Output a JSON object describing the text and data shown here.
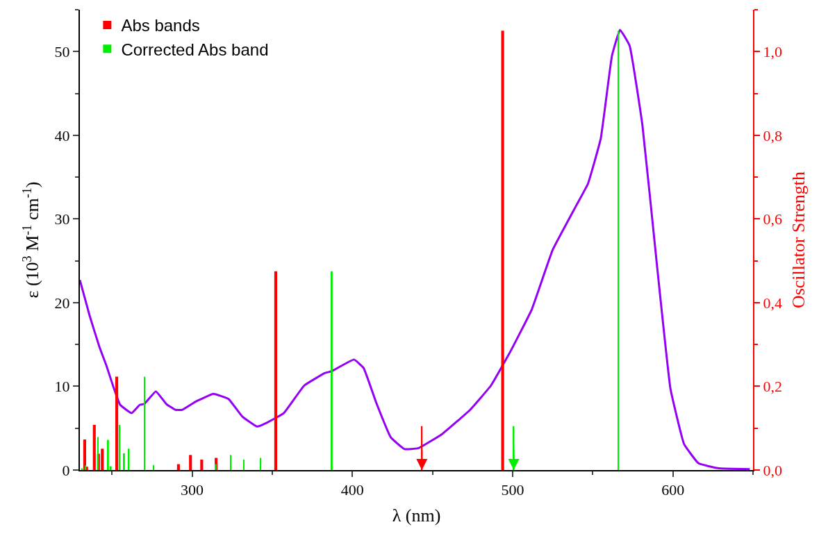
{
  "chart_data": {
    "type": "line",
    "xlabel": "λ (nm)",
    "ylabel": "ε (10$^{3}$ M$^{-1}$ cm$^{-1}$)",
    "y2label": "Oscillator Strength",
    "xlim": [
      230,
      650
    ],
    "xticks": [
      300,
      400,
      500,
      600
    ],
    "ylim": [
      0,
      55
    ],
    "yticks": [
      0,
      10,
      20,
      30,
      40,
      50
    ],
    "y2lim": [
      0,
      1.1
    ],
    "y2ticks": [
      {
        "value": 0,
        "label": "0,0"
      },
      {
        "value": 0.2,
        "label": "0,2"
      },
      {
        "value": 0.4,
        "label": "0,4"
      },
      {
        "value": 0.6,
        "label": "0,6"
      },
      {
        "value": 0.8,
        "label": "0,8"
      },
      {
        "value": 1.0,
        "label": "1,0"
      }
    ],
    "legend": "top left",
    "series": [
      {
        "color": "#9400f5",
        "x": [
          230,
          236,
          242.2,
          246.5,
          250.8,
          255.1,
          262.3,
          267.4,
          270.2,
          277.4,
          283.9,
          289.6,
          293.9,
          302.5,
          313.3,
          322.7,
          331.3,
          340.6,
          347.1,
          357.2,
          370,
          383,
          387,
          401,
          407,
          415,
          424,
          432.6,
          441,
          456,
          473.5,
          486.5,
          499,
          512,
          525,
          540,
          547,
          555,
          562,
          567,
          573,
          581,
          590,
          598.5,
          607,
          616,
          629,
          648
        ],
        "values": [
          22.7,
          18.5,
          14.7,
          12.5,
          10.0,
          7.8,
          6.8,
          7.8,
          7.9,
          9.4,
          7.9,
          7.2,
          7.2,
          8.2,
          9.1,
          8.5,
          6.4,
          5.2,
          5.7,
          6.8,
          10.1,
          11.6,
          11.8,
          13.2,
          12.2,
          8.0,
          3.9,
          2.5,
          2.6,
          4.3,
          7.2,
          10.1,
          14.3,
          19.2,
          26.3,
          31.7,
          34.2,
          39.6,
          49.5,
          52.6,
          50.7,
          41.2,
          24.6,
          9.7,
          3.1,
          0.8,
          0.2,
          0.1
        ]
      },
      {
        "type": "bar",
        "axis": "y2",
        "name": "Abs bands",
        "color": "#ff0000",
        "x": [
          233,
          234.2,
          239,
          241.6,
          244,
          253,
          291.5,
          299,
          306,
          315,
          352.2,
          493.8
        ],
        "values": [
          0.073,
          0.008,
          0.108,
          0.039,
          0.051,
          0.223,
          0.014,
          0.036,
          0.025,
          0.029,
          0.475,
          1.05
        ]
      },
      {
        "type": "bar",
        "axis": "y2",
        "name": "Corrected Abs band",
        "color": "#00ee00",
        "x": [
          231.3,
          233.6,
          241.3,
          247.7,
          249.4,
          254.9,
          257.7,
          260.6,
          270.4,
          276,
          314.9,
          324.2,
          332.3,
          342.8,
          387.3,
          566
        ],
        "values": [
          0.004,
          0.011,
          0.079,
          0.072,
          0.009,
          0.108,
          0.04,
          0.051,
          0.223,
          0.012,
          0.014,
          0.036,
          0.025,
          0.029,
          0.475,
          1.05
        ]
      },
      {
        "type": "bar",
        "axis": "y2",
        "marker": "triangle",
        "color": "#ff0000",
        "x": [
          443.4
        ],
        "values": [
          0.105
        ]
      },
      {
        "type": "bar",
        "axis": "y2",
        "marker": "triangle",
        "color": "#00ee00",
        "x": [
          500.7
        ],
        "values": [
          0.105
        ]
      }
    ]
  }
}
